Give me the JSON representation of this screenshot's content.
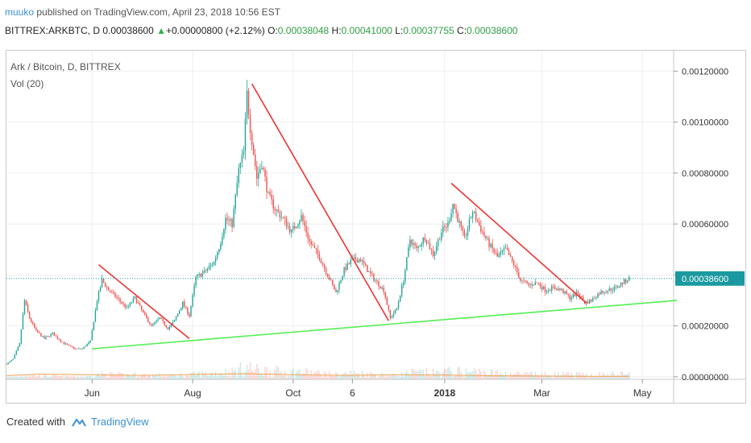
{
  "header": {
    "user": "muuko",
    "published": " published on TradingView.com, April 23, 2018 10:56 EST",
    "symbol": "BITTREX:ARKBTC, D",
    "last": "0.00038600",
    "change_arrow": "▲",
    "change": "+0.00000800 (+2.12%)",
    "o_label": "O:",
    "o_value": "0.00038048",
    "h_label": "H:",
    "h_value": "0.00041000",
    "l_label": "L:",
    "l_value": "0.00037755",
    "c_label": "C:",
    "c_value": "0.00038600"
  },
  "chart_title": "Ark / Bitcoin, D, BITTREX",
  "volume_label": "Vol (20)",
  "price_tag": "0.00038600",
  "footer": {
    "created_with": "Created with",
    "brand": "TradingView"
  },
  "colors": {
    "up": "#26a69a",
    "down": "#ef5350",
    "red_line": "#ee3333",
    "green_line": "#55ee55",
    "last_price": "#1a9aa0",
    "volume_ma": "#f0a050"
  },
  "chart_data": {
    "type": "candlestick",
    "title": "Ark / Bitcoin, D, BITTREX",
    "ylabel": "",
    "xlabel": "",
    "ylim": [
      -1e-05,
      0.00128
    ],
    "xlim": [
      "2017-04-10",
      "2018-05-20"
    ],
    "y_ticks": [
      "0.00000000",
      "0.00020000",
      "0.00040000",
      "0.00060000",
      "0.00080000",
      "0.00100000",
      "0.00120000"
    ],
    "x_ticks": [
      {
        "label": "Jun",
        "date": "2017-06-01"
      },
      {
        "label": "Aug",
        "date": "2017-08-01"
      },
      {
        "label": "Oct",
        "date": "2017-10-01"
      },
      {
        "label": "6",
        "date": "2017-11-06"
      },
      {
        "label": "2018",
        "date": "2018-01-01"
      },
      {
        "label": "Mar",
        "date": "2018-03-01"
      },
      {
        "label": "May",
        "date": "2018-05-01"
      }
    ],
    "grid": true,
    "price_path": [
      [
        "2017-04-10",
        5e-05
      ],
      [
        "2017-04-14",
        7e-05
      ],
      [
        "2017-04-18",
        0.00013
      ],
      [
        "2017-04-21",
        0.0003
      ],
      [
        "2017-04-24",
        0.00023
      ],
      [
        "2017-04-28",
        0.00018
      ],
      [
        "2017-05-03",
        0.00015
      ],
      [
        "2017-05-08",
        0.00017
      ],
      [
        "2017-05-13",
        0.00014
      ],
      [
        "2017-05-18",
        0.00012
      ],
      [
        "2017-05-22",
        0.00011
      ],
      [
        "2017-05-26",
        0.00011
      ],
      [
        "2017-05-31",
        0.00014
      ],
      [
        "2017-06-04",
        0.0003
      ],
      [
        "2017-06-07",
        0.00038
      ],
      [
        "2017-06-11",
        0.00034
      ],
      [
        "2017-06-16",
        0.00031
      ],
      [
        "2017-06-22",
        0.00027
      ],
      [
        "2017-06-27",
        0.00031
      ],
      [
        "2017-07-02",
        0.00025
      ],
      [
        "2017-07-07",
        0.0002
      ],
      [
        "2017-07-12",
        0.00023
      ],
      [
        "2017-07-17",
        0.00019
      ],
      [
        "2017-07-21",
        0.00022
      ],
      [
        "2017-07-26",
        0.00029
      ],
      [
        "2017-07-30",
        0.00024
      ],
      [
        "2017-08-03",
        0.00039
      ],
      [
        "2017-08-08",
        0.00041
      ],
      [
        "2017-08-14",
        0.00045
      ],
      [
        "2017-08-18",
        0.00053
      ],
      [
        "2017-08-21",
        0.00062
      ],
      [
        "2017-08-25",
        0.0006
      ],
      [
        "2017-08-29",
        0.00081
      ],
      [
        "2017-09-01",
        0.00088
      ],
      [
        "2017-09-03",
        0.00111
      ],
      [
        "2017-09-05",
        0.00098
      ],
      [
        "2017-09-09",
        0.00078
      ],
      [
        "2017-09-12",
        0.00084
      ],
      [
        "2017-09-16",
        0.00071
      ],
      [
        "2017-09-20",
        0.00066
      ],
      [
        "2017-09-25",
        0.00062
      ],
      [
        "2017-09-30",
        0.00057
      ],
      [
        "2017-10-06",
        0.00063
      ],
      [
        "2017-10-11",
        0.00053
      ],
      [
        "2017-10-17",
        0.00047
      ],
      [
        "2017-10-22",
        0.0004
      ],
      [
        "2017-10-27",
        0.00033
      ],
      [
        "2017-11-01",
        0.00042
      ],
      [
        "2017-11-06",
        0.00046
      ],
      [
        "2017-11-11",
        0.00046
      ],
      [
        "2017-11-16",
        0.00041
      ],
      [
        "2017-11-21",
        0.00037
      ],
      [
        "2017-11-25",
        0.00034
      ],
      [
        "2017-11-29",
        0.00023
      ],
      [
        "2017-12-03",
        0.00027
      ],
      [
        "2017-12-07",
        0.00038
      ],
      [
        "2017-12-11",
        0.00054
      ],
      [
        "2017-12-15",
        0.0005
      ],
      [
        "2017-12-20",
        0.00055
      ],
      [
        "2017-12-25",
        0.00048
      ],
      [
        "2017-12-30",
        0.00057
      ],
      [
        "2018-01-03",
        0.0006
      ],
      [
        "2018-01-06",
        0.00068
      ],
      [
        "2018-01-09",
        0.00062
      ],
      [
        "2018-01-13",
        0.00054
      ],
      [
        "2018-01-18",
        0.00065
      ],
      [
        "2018-01-23",
        0.00058
      ],
      [
        "2018-01-28",
        0.00052
      ],
      [
        "2018-02-02",
        0.00047
      ],
      [
        "2018-02-07",
        0.0005
      ],
      [
        "2018-02-12",
        0.00044
      ],
      [
        "2018-02-16",
        0.00038
      ],
      [
        "2018-02-21",
        0.00036
      ],
      [
        "2018-02-26",
        0.00037
      ],
      [
        "2018-03-03",
        0.00034
      ],
      [
        "2018-03-08",
        0.00035
      ],
      [
        "2018-03-13",
        0.00034
      ],
      [
        "2018-03-18",
        0.00031
      ],
      [
        "2018-03-23",
        0.00033
      ],
      [
        "2018-03-27",
        0.00029
      ],
      [
        "2018-03-31",
        0.0003
      ],
      [
        "2018-04-05",
        0.00033
      ],
      [
        "2018-04-10",
        0.00034
      ],
      [
        "2018-04-15",
        0.00035
      ],
      [
        "2018-04-19",
        0.00037
      ],
      [
        "2018-04-23",
        0.000386
      ]
    ],
    "last_price": 0.000386,
    "trendlines": [
      {
        "color": "red",
        "from": [
          "2017-06-05",
          0.00044
        ],
        "to": [
          "2017-07-30",
          0.00015
        ]
      },
      {
        "color": "red",
        "from": [
          "2017-09-06",
          0.00115
        ],
        "to": [
          "2017-11-28",
          0.00022
        ]
      },
      {
        "color": "red",
        "from": [
          "2018-01-05",
          0.00076
        ],
        "to": [
          "2018-03-28",
          0.00029
        ]
      },
      {
        "color": "green",
        "from": [
          "2017-06-01",
          0.00011
        ],
        "to": [
          "2018-05-22",
          0.0003
        ]
      }
    ],
    "volume_ma_path": [
      [
        "2017-04-10",
        5e-06
      ],
      [
        "2017-05-01",
        1e-05
      ],
      [
        "2017-06-01",
        8e-06
      ],
      [
        "2017-07-01",
        6e-06
      ],
      [
        "2017-08-01",
        9e-06
      ],
      [
        "2017-09-01",
        1.2e-05
      ],
      [
        "2017-10-01",
        8e-06
      ],
      [
        "2017-11-01",
        6e-06
      ],
      [
        "2017-12-01",
        8e-06
      ],
      [
        "2018-01-01",
        7e-06
      ],
      [
        "2018-02-01",
        4e-06
      ],
      [
        "2018-03-01",
        3e-06
      ],
      [
        "2018-04-01",
        2e-06
      ],
      [
        "2018-04-23",
        2e-06
      ]
    ]
  }
}
